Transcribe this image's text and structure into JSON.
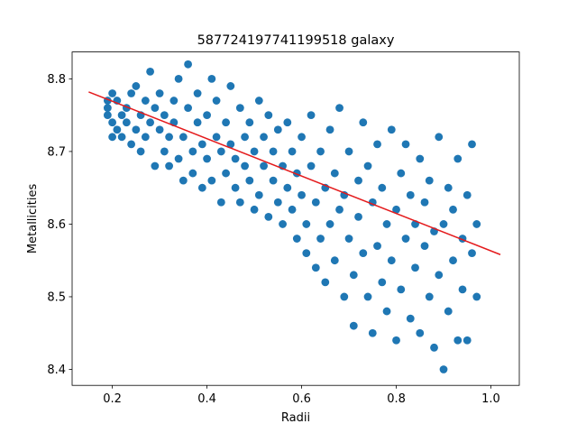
{
  "chart_data": {
    "type": "scatter",
    "title": "587724197741199518 galaxy",
    "xlabel": "Radii",
    "ylabel": "Metallicities",
    "xlim": [
      0.115,
      1.06
    ],
    "ylim": [
      8.378,
      8.837
    ],
    "xticks": [
      0.2,
      0.4,
      0.6,
      0.8,
      1.0
    ],
    "xtick_labels": [
      "0.2",
      "0.4",
      "0.6",
      "0.8",
      "1.0"
    ],
    "yticks": [
      8.4,
      8.5,
      8.6,
      8.7,
      8.8
    ],
    "ytick_labels": [
      "8.4",
      "8.5",
      "8.6",
      "8.7",
      "8.8"
    ],
    "grid": false,
    "colors": {
      "points": "#1f77b4",
      "fit_line": "#e41a1c"
    },
    "series": [
      {
        "points": [
          [
            0.19,
            8.77
          ],
          [
            0.19,
            8.75
          ],
          [
            0.2,
            8.72
          ],
          [
            0.2,
            8.74
          ],
          [
            0.19,
            8.76
          ],
          [
            0.2,
            8.78
          ],
          [
            0.21,
            8.73
          ],
          [
            0.21,
            8.77
          ],
          [
            0.22,
            8.72
          ],
          [
            0.22,
            8.75
          ],
          [
            0.23,
            8.76
          ],
          [
            0.23,
            8.74
          ],
          [
            0.24,
            8.71
          ],
          [
            0.24,
            8.78
          ],
          [
            0.25,
            8.79
          ],
          [
            0.25,
            8.73
          ],
          [
            0.26,
            8.75
          ],
          [
            0.26,
            8.7
          ],
          [
            0.27,
            8.77
          ],
          [
            0.27,
            8.72
          ],
          [
            0.28,
            8.74
          ],
          [
            0.28,
            8.81
          ],
          [
            0.29,
            8.68
          ],
          [
            0.29,
            8.76
          ],
          [
            0.3,
            8.73
          ],
          [
            0.3,
            8.78
          ],
          [
            0.31,
            8.7
          ],
          [
            0.31,
            8.75
          ],
          [
            0.32,
            8.68
          ],
          [
            0.32,
            8.72
          ],
          [
            0.33,
            8.77
          ],
          [
            0.33,
            8.74
          ],
          [
            0.34,
            8.69
          ],
          [
            0.34,
            8.8
          ],
          [
            0.35,
            8.66
          ],
          [
            0.35,
            8.72
          ],
          [
            0.36,
            8.82
          ],
          [
            0.36,
            8.76
          ],
          [
            0.37,
            8.7
          ],
          [
            0.37,
            8.67
          ],
          [
            0.38,
            8.74
          ],
          [
            0.38,
            8.78
          ],
          [
            0.39,
            8.65
          ],
          [
            0.39,
            8.71
          ],
          [
            0.4,
            8.75
          ],
          [
            0.4,
            8.69
          ],
          [
            0.41,
            8.66
          ],
          [
            0.41,
            8.8
          ],
          [
            0.42,
            8.72
          ],
          [
            0.42,
            8.77
          ],
          [
            0.43,
            8.63
          ],
          [
            0.43,
            8.7
          ],
          [
            0.44,
            8.74
          ],
          [
            0.44,
            8.67
          ],
          [
            0.45,
            8.71
          ],
          [
            0.45,
            8.79
          ],
          [
            0.46,
            8.65
          ],
          [
            0.46,
            8.69
          ],
          [
            0.47,
            8.76
          ],
          [
            0.47,
            8.63
          ],
          [
            0.48,
            8.72
          ],
          [
            0.48,
            8.68
          ],
          [
            0.49,
            8.74
          ],
          [
            0.49,
            8.66
          ],
          [
            0.5,
            8.62
          ],
          [
            0.5,
            8.7
          ],
          [
            0.51,
            8.77
          ],
          [
            0.51,
            8.64
          ],
          [
            0.52,
            8.72
          ],
          [
            0.52,
            8.68
          ],
          [
            0.53,
            8.61
          ],
          [
            0.53,
            8.75
          ],
          [
            0.54,
            8.66
          ],
          [
            0.54,
            8.7
          ],
          [
            0.55,
            8.63
          ],
          [
            0.55,
            8.73
          ],
          [
            0.56,
            8.6
          ],
          [
            0.56,
            8.68
          ],
          [
            0.57,
            8.65
          ],
          [
            0.57,
            8.74
          ],
          [
            0.58,
            8.62
          ],
          [
            0.58,
            8.7
          ],
          [
            0.59,
            8.58
          ],
          [
            0.59,
            8.67
          ],
          [
            0.6,
            8.64
          ],
          [
            0.6,
            8.72
          ],
          [
            0.61,
            8.6
          ],
          [
            0.61,
            8.56
          ],
          [
            0.62,
            8.68
          ],
          [
            0.62,
            8.75
          ],
          [
            0.63,
            8.63
          ],
          [
            0.63,
            8.54
          ],
          [
            0.64,
            8.7
          ],
          [
            0.64,
            8.58
          ],
          [
            0.65,
            8.65
          ],
          [
            0.65,
            8.52
          ],
          [
            0.66,
            8.73
          ],
          [
            0.66,
            8.6
          ],
          [
            0.67,
            8.67
          ],
          [
            0.67,
            8.55
          ],
          [
            0.68,
            8.62
          ],
          [
            0.68,
            8.76
          ],
          [
            0.69,
            8.5
          ],
          [
            0.69,
            8.64
          ],
          [
            0.7,
            8.58
          ],
          [
            0.7,
            8.7
          ],
          [
            0.71,
            8.53
          ],
          [
            0.71,
            8.46
          ],
          [
            0.72,
            8.66
          ],
          [
            0.72,
            8.61
          ],
          [
            0.73,
            8.74
          ],
          [
            0.73,
            8.56
          ],
          [
            0.74,
            8.5
          ],
          [
            0.74,
            8.68
          ],
          [
            0.75,
            8.63
          ],
          [
            0.75,
            8.45
          ],
          [
            0.76,
            8.71
          ],
          [
            0.76,
            8.57
          ],
          [
            0.77,
            8.52
          ],
          [
            0.77,
            8.65
          ],
          [
            0.78,
            8.6
          ],
          [
            0.78,
            8.48
          ],
          [
            0.79,
            8.73
          ],
          [
            0.79,
            8.55
          ],
          [
            0.8,
            8.62
          ],
          [
            0.8,
            8.44
          ],
          [
            0.81,
            8.67
          ],
          [
            0.81,
            8.51
          ],
          [
            0.82,
            8.58
          ],
          [
            0.82,
            8.71
          ],
          [
            0.83,
            8.47
          ],
          [
            0.83,
            8.64
          ],
          [
            0.84,
            8.54
          ],
          [
            0.84,
            8.6
          ],
          [
            0.85,
            8.69
          ],
          [
            0.85,
            8.45
          ],
          [
            0.86,
            8.57
          ],
          [
            0.86,
            8.63
          ],
          [
            0.87,
            8.5
          ],
          [
            0.87,
            8.66
          ],
          [
            0.88,
            8.43
          ],
          [
            0.88,
            8.59
          ],
          [
            0.89,
            8.53
          ],
          [
            0.89,
            8.72
          ],
          [
            0.9,
            8.6
          ],
          [
            0.9,
            8.4
          ],
          [
            0.91,
            8.48
          ],
          [
            0.91,
            8.65
          ],
          [
            0.92,
            8.55
          ],
          [
            0.92,
            8.62
          ],
          [
            0.93,
            8.44
          ],
          [
            0.93,
            8.69
          ],
          [
            0.94,
            8.51
          ],
          [
            0.94,
            8.58
          ],
          [
            0.95,
            8.64
          ],
          [
            0.95,
            8.44
          ],
          [
            0.96,
            8.71
          ],
          [
            0.96,
            8.56
          ],
          [
            0.97,
            8.5
          ],
          [
            0.97,
            8.6
          ]
        ]
      }
    ],
    "fit_line": {
      "x": [
        0.15,
        1.02
      ],
      "y": [
        8.782,
        8.558
      ]
    }
  }
}
